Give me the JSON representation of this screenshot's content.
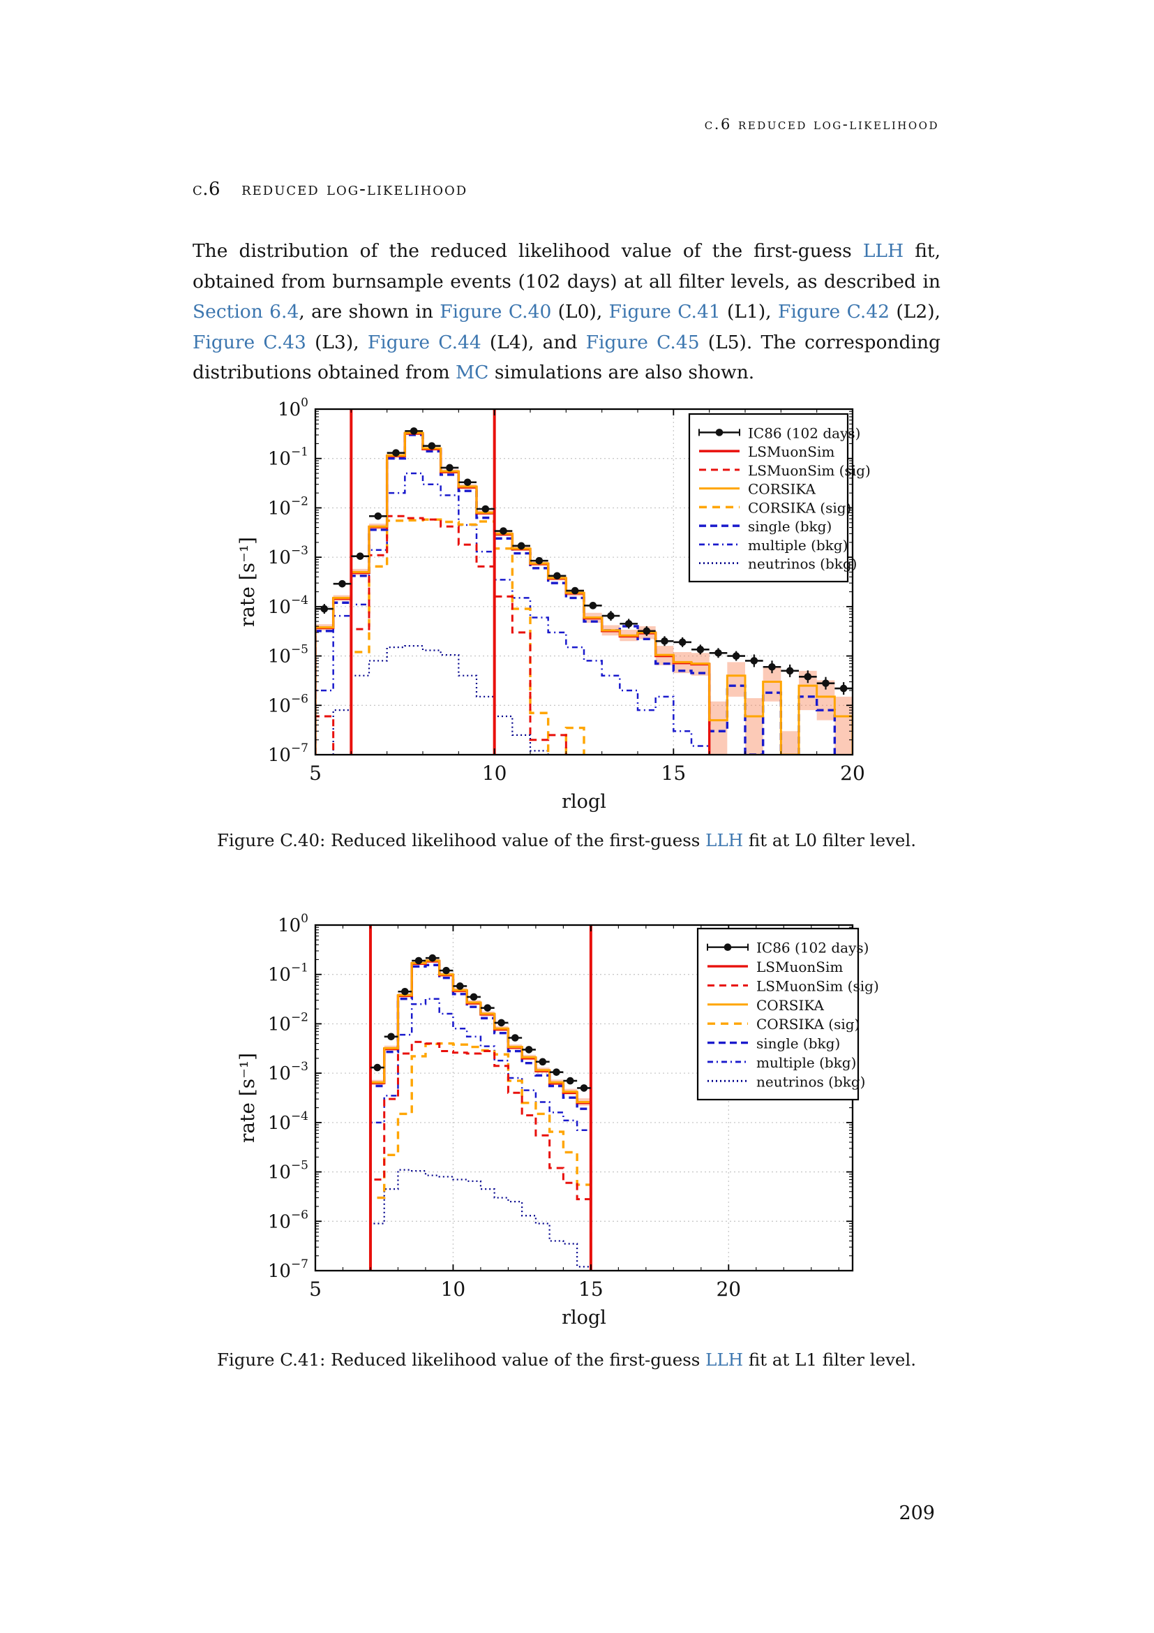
{
  "page": {
    "running_header": "c.6 reduced log-likelihood",
    "section_number": "c.6",
    "section_title": "reduced log-likelihood",
    "page_number": "209"
  },
  "paragraph": {
    "segments": [
      {
        "t": "The distribution of the reduced likelihood value of the first-guess "
      },
      {
        "t": "LLH",
        "link": true
      },
      {
        "t": " fit, obtained from burnsample events (102 days) at all filter levels, as described in "
      },
      {
        "t": "Section 6.4",
        "link": true
      },
      {
        "t": ", are shown in "
      },
      {
        "t": "Figure C.40",
        "link": true
      },
      {
        "t": " (L0), "
      },
      {
        "t": "Figure C.41",
        "link": true
      },
      {
        "t": " (L1), "
      },
      {
        "t": "Figure C.42",
        "link": true
      },
      {
        "t": " (L2), "
      },
      {
        "t": "Figure C.43",
        "link": true
      },
      {
        "t": " (L3), "
      },
      {
        "t": "Figure C.44",
        "link": true
      },
      {
        "t": " (L4), and "
      },
      {
        "t": "Figure C.45",
        "link": true
      },
      {
        "t": " (L5). The corresponding distributions obtained from "
      },
      {
        "t": "MC",
        "link": true
      },
      {
        "t": " simulations are also shown."
      }
    ]
  },
  "captions": [
    {
      "prefix": "Figure C.40: Reduced likelihood value of the first-guess ",
      "link_text": "LLH",
      "suffix": " fit at L0 filter level."
    },
    {
      "prefix": "Figure C.41: Reduced likelihood value of the first-guess ",
      "link_text": "LLH",
      "suffix": " fit at L1 filter level."
    }
  ],
  "colors": {
    "link": "#3c76af",
    "black": "#111111",
    "red": "#e8100c",
    "orange": "#ffa500",
    "blue": "#1a1acc",
    "navy": "#00008b",
    "band": "#f98a5f",
    "grid": "#c9c9c9"
  },
  "chart_data": [
    {
      "type": "histogram",
      "xlabel": "rlogl",
      "ylabel": "rate [s⁻¹]",
      "xlim": [
        5,
        20
      ],
      "xticks": [
        5,
        10,
        15,
        20
      ],
      "grid_x": [
        10,
        15
      ],
      "y_exponent_range": [
        0,
        -7
      ],
      "bin_start": 5.0,
      "bin_width": 0.5,
      "cut_lines": [
        6,
        10
      ],
      "legend": [
        {
          "key": "ic86",
          "label": "IC86 (102 days)"
        },
        {
          "key": "lsmuonsim",
          "label": "LSMuonSim"
        },
        {
          "key": "lsmuonsim_sig",
          "label": "LSMuonSim (sig)"
        },
        {
          "key": "corsika",
          "label": "CORSIKA"
        },
        {
          "key": "corsika_sig",
          "label": "CORSIKA (sig)"
        },
        {
          "key": "single",
          "label": "single (bkg)"
        },
        {
          "key": "multiple",
          "label": "multiple (bkg)"
        },
        {
          "key": "neutrinos",
          "label": "neutrinos (bkg)"
        }
      ],
      "series": {
        "ic86": [
          9e-05,
          0.00029,
          0.00105,
          0.0068,
          0.13,
          0.36,
          0.18,
          0.065,
          0.033,
          0.0095,
          0.0034,
          0.0017,
          0.00085,
          0.00042,
          0.00021,
          0.000105,
          6.5e-05,
          4.5e-05,
          3.2e-05,
          2e-05,
          1.9e-05,
          1.35e-05,
          1.15e-05,
          1e-05,
          8e-06,
          6e-06,
          5e-06,
          3.8e-06,
          2.8e-06,
          2.2e-06
        ],
        "lsmuonsim": [
          3.7e-05,
          0.000145,
          0.000485,
          0.0041,
          0.112,
          0.32,
          0.155,
          0.053,
          0.026,
          0.0078,
          0.0029,
          0.00145,
          0.00073,
          0.00037,
          0.000185,
          5.8e-05,
          3.2e-05,
          2.5e-05,
          2.9e-05,
          1e-05,
          7.2e-06,
          6.8e-06,
          null,
          null,
          null,
          null,
          null,
          null,
          null,
          null
        ],
        "lsmuonsim_sig": [
          6e-07,
          null,
          3.5e-05,
          0.0011,
          0.0068,
          0.0062,
          0.0058,
          0.0042,
          0.0018,
          0.00065,
          0.00016,
          3e-05,
          2e-07,
          2.5e-07,
          null,
          null,
          null,
          null,
          null,
          null,
          null,
          null,
          null,
          null,
          null,
          null,
          null,
          null,
          null,
          null
        ],
        "corsika": [
          3.8e-05,
          0.00015,
          0.0005,
          0.0042,
          0.115,
          0.33,
          0.16,
          0.055,
          0.027,
          0.008,
          0.003,
          0.0015,
          0.00075,
          0.00038,
          0.00019,
          6e-05,
          3.3e-05,
          2.6e-05,
          3e-05,
          1.05e-05,
          7.5e-06,
          7e-06,
          5e-07,
          4e-06,
          6e-07,
          3e-06,
          1e-07,
          2.5e-06,
          1.5e-06,
          6e-07
        ],
        "corsika_sig": [
          null,
          null,
          1.2e-05,
          0.00065,
          0.0055,
          0.0056,
          0.0058,
          0.0052,
          0.0046,
          0.0053,
          0.0015,
          9e-05,
          7e-07,
          null,
          3.5e-07,
          null,
          null,
          null,
          null,
          null,
          null,
          null,
          null,
          null,
          null,
          null,
          null,
          null,
          null,
          null
        ],
        "single": [
          3.2e-05,
          0.00012,
          0.00042,
          0.0036,
          0.1,
          0.3,
          0.14,
          0.047,
          0.022,
          0.0063,
          0.0024,
          0.0012,
          0.0006,
          0.0003,
          0.00015,
          5e-05,
          3.3e-05,
          4e-05,
          2.2e-05,
          7e-06,
          5e-06,
          4.5e-06,
          3e-07,
          2.5e-06,
          1e-07,
          1.8e-06,
          null,
          1.5e-06,
          8e-07,
          null
        ],
        "multiple": [
          2e-06,
          6.5e-05,
          0.00011,
          0.0014,
          0.02,
          0.05,
          0.03,
          0.018,
          0.0045,
          0.0013,
          0.00035,
          0.00015,
          6e-05,
          3e-05,
          1.5e-05,
          8e-06,
          4e-06,
          2e-06,
          8e-07,
          1.5e-06,
          3e-07,
          1.5e-07,
          null,
          null,
          null,
          null,
          null,
          null,
          null,
          null
        ],
        "neutrinos": [
          null,
          8e-07,
          4e-06,
          8e-06,
          1.5e-05,
          1.6e-05,
          1.3e-05,
          1.05e-05,
          4e-06,
          1.5e-06,
          6e-07,
          2.5e-07,
          1.2e-07,
          null,
          null,
          null,
          null,
          null,
          null,
          null,
          null,
          null,
          null,
          null,
          null,
          null,
          null,
          null,
          null,
          null
        ]
      },
      "band": {
        "series": "corsika",
        "upper": [
          4.4e-05,
          0.00017,
          0.00058,
          0.0048,
          0.125,
          0.35,
          0.17,
          0.06,
          0.03,
          0.0088,
          0.0033,
          0.00165,
          0.00083,
          0.00042,
          0.00022,
          7.5e-05,
          4.2e-05,
          3.4e-05,
          4e-05,
          1.6e-05,
          1.2e-05,
          1.15e-05,
          1.2e-06,
          7.5e-06,
          1.4e-06,
          6e-06,
          3e-07,
          5e-06,
          3.2e-06,
          1.5e-06
        ],
        "lower": [
          3.3e-05,
          0.00013,
          0.00043,
          0.0037,
          0.105,
          0.31,
          0.15,
          0.05,
          0.024,
          0.0072,
          0.0027,
          0.00135,
          0.00067,
          0.00034,
          0.000165,
          4.7e-05,
          2.6e-05,
          2e-05,
          2.2e-05,
          6.5e-06,
          4.5e-06,
          4e-06,
          1e-07,
          1.5e-06,
          1e-07,
          1.2e-06,
          1e-07,
          8e-07,
          5e-07,
          1e-07
        ]
      }
    },
    {
      "type": "histogram",
      "xlabel": "rlogl",
      "ylabel": "rate [s⁻¹]",
      "xlim": [
        5,
        24.5
      ],
      "xticks": [
        5,
        10,
        15,
        20
      ],
      "grid_x": [
        10,
        15,
        20
      ],
      "y_exponent_range": [
        0,
        -7
      ],
      "bin_start": 7.0,
      "bin_width": 0.5,
      "cut_lines": [
        7,
        15
      ],
      "legend": [
        {
          "key": "ic86",
          "label": "IC86 (102 days)"
        },
        {
          "key": "lsmuonsim",
          "label": "LSMuonSim"
        },
        {
          "key": "lsmuonsim_sig",
          "label": "LSMuonSim (sig)"
        },
        {
          "key": "corsika",
          "label": "CORSIKA"
        },
        {
          "key": "corsika_sig",
          "label": "CORSIKA (sig)"
        },
        {
          "key": "single",
          "label": "single (bkg)"
        },
        {
          "key": "multiple",
          "label": "multiple (bkg)"
        },
        {
          "key": "neutrinos",
          "label": "neutrinos (bkg)"
        }
      ],
      "series": {
        "ic86": [
          0.0013,
          0.0055,
          0.045,
          0.19,
          0.215,
          0.12,
          0.058,
          0.035,
          0.021,
          0.0105,
          0.0052,
          0.003,
          0.0017,
          0.00105,
          0.0007,
          0.0005
        ],
        "lsmuonsim": [
          0.00063,
          0.0031,
          0.037,
          0.165,
          0.184,
          0.097,
          0.0465,
          0.026,
          0.0155,
          0.0077,
          0.0033,
          0.002,
          0.0011,
          0.00062,
          0.0004,
          0.00025
        ],
        "lsmuonsim_sig": [
          7e-06,
          0.0003,
          0.0025,
          0.0043,
          0.004,
          0.0028,
          0.0026,
          0.0025,
          0.0028,
          0.0014,
          0.0004,
          0.00014,
          5.5e-05,
          1.2e-05,
          6e-06,
          2.8e-06
        ],
        "corsika": [
          0.00065,
          0.0032,
          0.038,
          0.17,
          0.19,
          0.1,
          0.048,
          0.027,
          0.016,
          0.008,
          0.0034,
          0.0021,
          0.00115,
          0.00065,
          0.00042,
          0.00026
        ],
        "corsika_sig": [
          3e-06,
          2.2e-05,
          0.00015,
          0.0022,
          0.0039,
          0.004,
          0.0038,
          0.0034,
          0.0029,
          0.0024,
          0.0007,
          0.00025,
          0.00015,
          6.5e-05,
          2.5e-05,
          5.5e-06
        ],
        "single": [
          0.00055,
          0.0027,
          0.032,
          0.145,
          0.155,
          0.085,
          0.04,
          0.022,
          0.013,
          0.0065,
          0.0028,
          0.0016,
          0.0009,
          0.00055,
          0.00032,
          0.00019
        ],
        "multiple": [
          0.0001,
          0.00035,
          0.006,
          0.025,
          0.032,
          0.016,
          0.008,
          0.0055,
          0.0035,
          0.0018,
          0.0008,
          0.00045,
          0.00026,
          0.00016,
          0.00011,
          7e-05
        ],
        "neutrinos": [
          9e-07,
          4.5e-06,
          1.1e-05,
          1.05e-05,
          8.5e-06,
          8e-06,
          7e-06,
          6.5e-06,
          4.5e-06,
          3e-06,
          2.5e-06,
          1.3e-06,
          9e-07,
          4e-07,
          3.5e-07,
          1.2e-07
        ]
      },
      "band": {
        "series": "corsika",
        "upper": [
          0.00073,
          0.0036,
          0.042,
          0.185,
          0.205,
          0.109,
          0.053,
          0.03,
          0.0177,
          0.0089,
          0.0038,
          0.00235,
          0.0013,
          0.00074,
          0.00048,
          0.00031
        ],
        "lower": [
          0.00058,
          0.00285,
          0.034,
          0.155,
          0.175,
          0.091,
          0.043,
          0.024,
          0.0143,
          0.0071,
          0.003,
          0.00187,
          0.00102,
          0.00058,
          0.00037,
          0.00022
        ]
      }
    }
  ]
}
